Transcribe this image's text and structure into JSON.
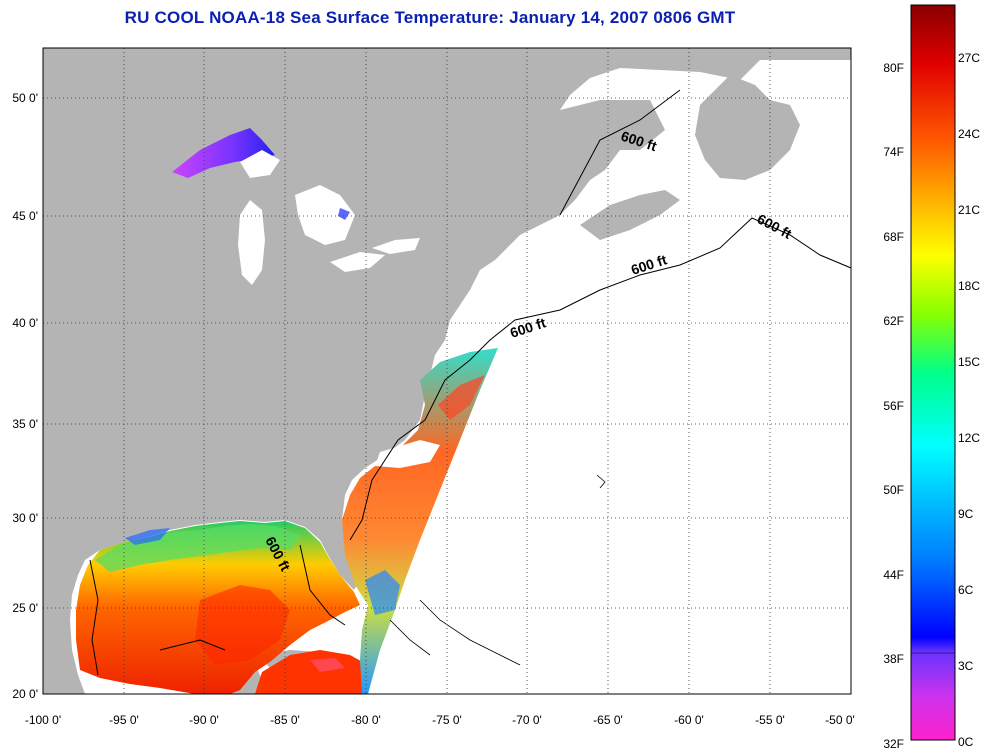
{
  "title": "RU COOL  NOAA-18  Sea Surface Temperature:  January 14, 2007 0806 GMT",
  "map": {
    "lon_range": [
      -100,
      -50
    ],
    "lat_range": [
      20,
      52
    ],
    "lon_ticks": [
      "-100 0'",
      "-95 0'",
      "-90 0'",
      "-85 0'",
      "-80 0'",
      "-75 0'",
      "-70 0'",
      "-65 0'",
      "-60 0'",
      "-55 0'",
      "-50 0'"
    ],
    "lat_ticks": [
      "50 0'",
      "45 0'",
      "40 0'",
      "35 0'",
      "30 0'",
      "25 0'",
      "20 0'"
    ],
    "grid": "dotted",
    "land_color": "#b4b4b4",
    "no_data_color": "#ffffff",
    "depth_labels": [
      "600 ft",
      "600 ft",
      "600 ft",
      "600 ft",
      "600 ft"
    ]
  },
  "colorbar": {
    "fahrenheit_labels": [
      "80F",
      "74F",
      "68F",
      "62F",
      "56F",
      "50F",
      "44F",
      "38F",
      "32F"
    ],
    "celsius_labels": [
      "27C",
      "24C",
      "21C",
      "18C",
      "15C",
      "12C",
      "9C",
      "6C",
      "3C",
      "0C"
    ],
    "colors": [
      "#ff22cc",
      "#aa33ff",
      "#0000ff",
      "#0099ff",
      "#00ffff",
      "#00ff88",
      "#aaff00",
      "#ffff00",
      "#ffaa00",
      "#ff4400",
      "#dd0000",
      "#880000"
    ]
  }
}
